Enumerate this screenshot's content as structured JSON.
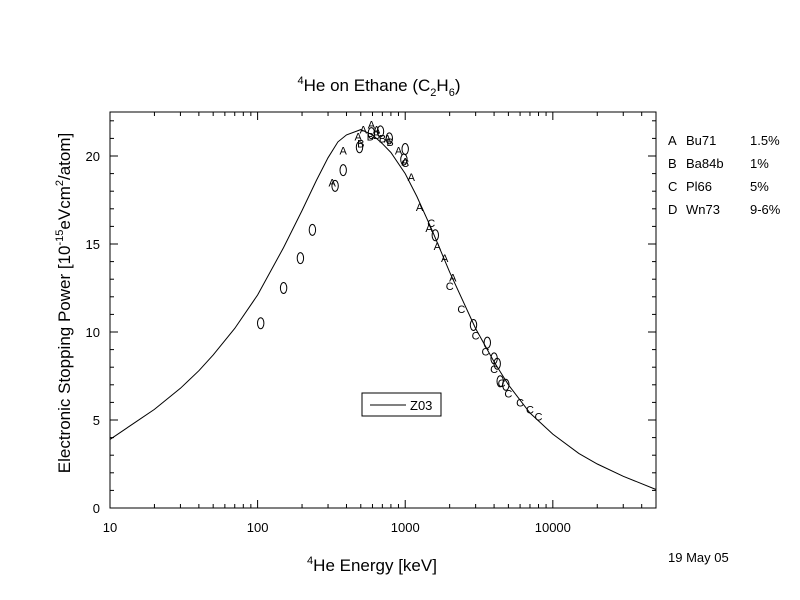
{
  "chart_data": {
    "type": "line",
    "title": {
      "sup": "4",
      "text1": "He on Ethane (C",
      "sub1": "2",
      "text2": "H",
      "sub2": "6",
      "text3": ")"
    },
    "xlabel": {
      "sup": "4",
      "text": "He Energy [keV]"
    },
    "ylabel": {
      "text1": "Electronic Stopping Power [10",
      "sup1": "-15",
      "text2": "eVcm",
      "sup2": "2",
      "text3": "/atom]"
    },
    "x_scale": "log",
    "xlim": [
      10,
      50000
    ],
    "ylim": [
      0,
      22.5
    ],
    "x_ticks": [
      {
        "value": 10,
        "label": "10"
      },
      {
        "value": 100,
        "label": "100"
      },
      {
        "value": 1000,
        "label": "1000"
      },
      {
        "value": 10000,
        "label": "10000"
      }
    ],
    "y_ticks": [
      {
        "value": 0,
        "label": "0"
      },
      {
        "value": 5,
        "label": "5"
      },
      {
        "value": 10,
        "label": "10"
      },
      {
        "value": 15,
        "label": "15"
      },
      {
        "value": 20,
        "label": "20"
      }
    ],
    "grid": false,
    "date_label": "19 May 05",
    "curve": {
      "name": "Z03",
      "x": [
        10,
        15,
        20,
        30,
        40,
        50,
        70,
        100,
        150,
        200,
        250,
        300,
        350,
        400,
        500,
        600,
        700,
        800,
        1000,
        1200,
        1500,
        2000,
        3000,
        4000,
        5000,
        7000,
        10000,
        15000,
        20000,
        30000,
        50000
      ],
      "y": [
        3.9,
        4.9,
        5.6,
        6.8,
        7.8,
        8.7,
        10.2,
        12.1,
        14.8,
        16.9,
        18.6,
        19.9,
        20.8,
        21.2,
        21.5,
        21.2,
        20.7,
        20.2,
        19.0,
        17.7,
        15.9,
        13.4,
        10.2,
        8.3,
        7.0,
        5.4,
        4.2,
        3.1,
        2.5,
        1.8,
        1.05
      ]
    },
    "series": [
      {
        "symbol": "A",
        "ref": "Bu71",
        "uncertainty": "1.5%",
        "x": [
          320,
          380,
          480,
          520,
          590,
          640,
          760,
          900,
          1000,
          1100,
          1250,
          1450,
          1650,
          1850,
          2100
        ],
        "y": [
          18.5,
          20.3,
          21.1,
          21.5,
          21.8,
          21.5,
          21.0,
          20.3,
          19.7,
          18.8,
          17.1,
          15.9,
          14.9,
          14.2,
          13.1
        ]
      },
      {
        "symbol": "B",
        "ref": "Ba84b",
        "uncertainty": "1%",
        "x": [
          500,
          580,
          640,
          700,
          790
        ],
        "y": [
          20.7,
          21.1,
          21.2,
          21.0,
          20.8
        ]
      },
      {
        "symbol": "C",
        "ref": "Pl66",
        "uncertainty": "5%",
        "x": [
          1000,
          1500,
          2000,
          2400,
          3000,
          3500,
          4000,
          4500,
          5000,
          6000,
          7000,
          8000
        ],
        "y": [
          19.6,
          16.2,
          12.6,
          11.3,
          9.8,
          8.9,
          7.9,
          7.1,
          6.5,
          6.0,
          5.6,
          5.2
        ]
      },
      {
        "symbol": "D",
        "ref": "Wn73",
        "uncertainty": "9-6%",
        "x": [
          105,
          150,
          195,
          235,
          335,
          380,
          490,
          590,
          680,
          780,
          980,
          1000,
          1600,
          2900,
          3600,
          4000,
          4200,
          4400,
          4800
        ],
        "y": [
          10.5,
          12.5,
          14.2,
          15.8,
          18.3,
          19.2,
          20.5,
          21.3,
          21.4,
          21.0,
          19.8,
          20.4,
          15.5,
          10.4,
          9.4,
          8.5,
          8.2,
          7.2,
          7.0
        ]
      }
    ]
  }
}
